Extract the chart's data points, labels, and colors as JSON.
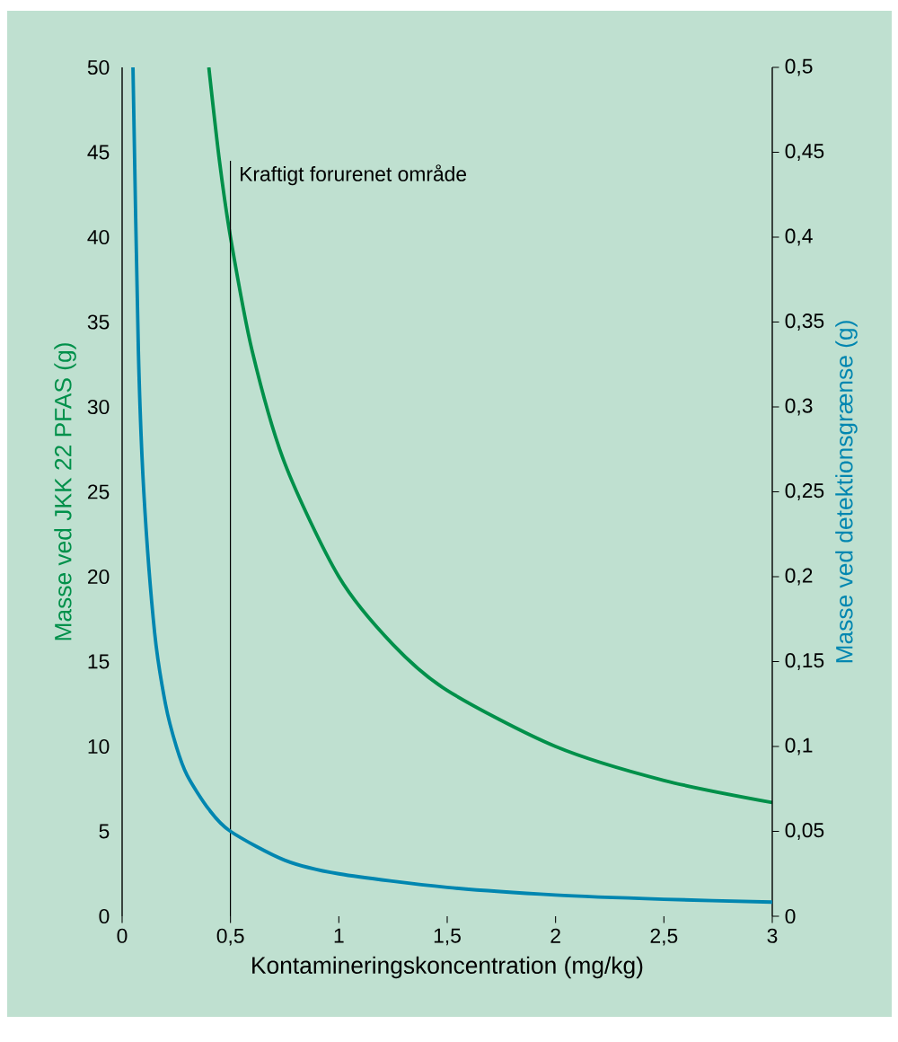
{
  "chart_data": {
    "type": "line",
    "xlabel": "Kontamineringskoncentration (mg/kg)",
    "ylabel": "Masse ved JKK 22 PFAS (g)",
    "y2label": "Masse ved detektionsgrænse (g)",
    "series": [
      {
        "color": "#00904a",
        "x": [
          0.4,
          0.45,
          0.5,
          0.6,
          0.75,
          1,
          1.25,
          1.5,
          2,
          2.5,
          3
        ],
        "values": [
          50,
          44.4,
          40,
          33.3,
          26.7,
          20,
          16,
          13.3,
          10,
          8,
          6.7
        ]
      },
      {
        "color": "#0086b0",
        "axis": "y2",
        "x": [
          0.05,
          0.075,
          0.1,
          0.15,
          0.2,
          0.25,
          0.3,
          0.4,
          0.5,
          0.75,
          1,
          1.5,
          2,
          2.5,
          3
        ],
        "values": [
          0.5,
          0.333,
          0.25,
          0.167,
          0.125,
          0.1,
          0.083,
          0.063,
          0.05,
          0.033,
          0.025,
          0.017,
          0.0125,
          0.01,
          0.0083
        ]
      }
    ],
    "xlim": [
      0,
      3
    ],
    "xticks": [
      0,
      {
        "value": 0.5,
        "label": "0,5"
      },
      1,
      {
        "value": 1.5,
        "label": "1,5"
      },
      2,
      {
        "value": 2.5,
        "label": "2,5"
      },
      3
    ],
    "ylim": [
      0,
      50
    ],
    "yticks": [
      0,
      5,
      10,
      15,
      20,
      25,
      30,
      35,
      40,
      45,
      50
    ],
    "y2lim": [
      0,
      0.5
    ],
    "y2ticks": [
      0,
      {
        "value": 0.05,
        "label": "0,05"
      },
      {
        "value": 0.1,
        "label": "0,1"
      },
      {
        "value": 0.15,
        "label": "0,15"
      },
      {
        "value": 0.2,
        "label": "0,2"
      },
      {
        "value": 0.25,
        "label": "0,25"
      },
      {
        "value": 0.3,
        "label": "0,3"
      },
      {
        "value": 0.35,
        "label": "0,35"
      },
      {
        "value": 0.4,
        "label": "0,4"
      },
      {
        "value": 0.45,
        "label": "0,45"
      },
      {
        "value": 0.5,
        "label": "0,5"
      }
    ],
    "ref_lines": [
      {
        "axis": "x",
        "value": 0.5,
        "label": "Kraftigt forurenet område",
        "color": "#000000"
      }
    ],
    "marker": "none",
    "line_style": "solid"
  }
}
